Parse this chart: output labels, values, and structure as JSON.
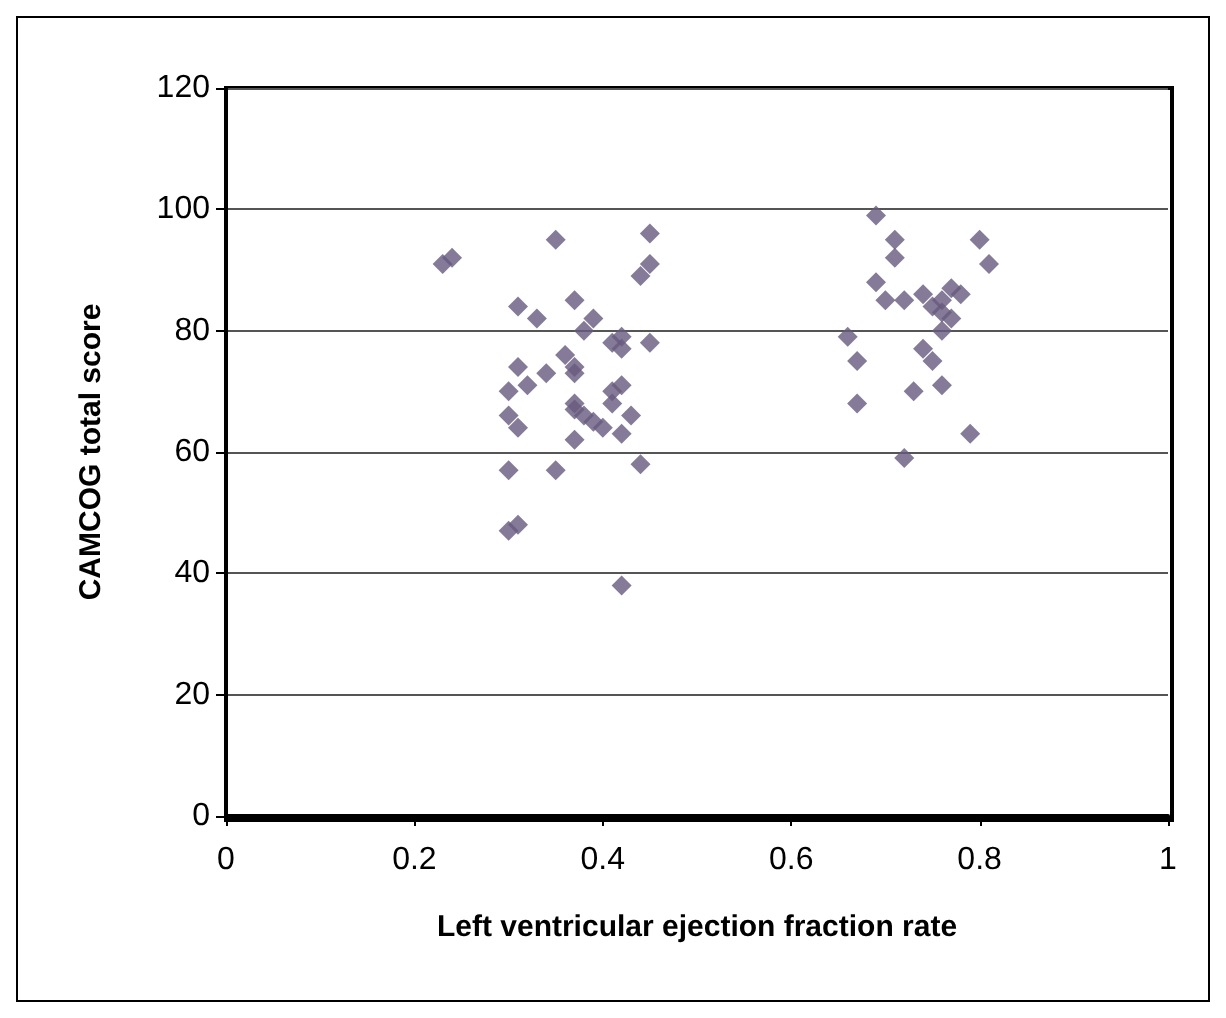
{
  "chart_data": {
    "type": "scatter",
    "xlabel": "Left ventricular ejection fraction rate",
    "ylabel": "CAMCOG total score",
    "xlim": [
      0,
      1
    ],
    "xticks": [
      0,
      0.2,
      0.4,
      0.6,
      0.8,
      1
    ],
    "ylim": [
      0,
      120
    ],
    "yticks": [
      0,
      20,
      40,
      60,
      80,
      100,
      120
    ],
    "grid": "y",
    "marker": "diamond",
    "series": [
      {
        "color": "#665a7e",
        "x": [
          0.23,
          0.24,
          0.35,
          0.45,
          0.44,
          0.45,
          0.31,
          0.33,
          0.37,
          0.38,
          0.39,
          0.36,
          0.34,
          0.37,
          0.37,
          0.31,
          0.32,
          0.3,
          0.42,
          0.41,
          0.42,
          0.45,
          0.3,
          0.31,
          0.37,
          0.37,
          0.38,
          0.39,
          0.4,
          0.42,
          0.41,
          0.41,
          0.43,
          0.42,
          0.37,
          0.3,
          0.35,
          0.44,
          0.3,
          0.31,
          0.42,
          0.69,
          0.71,
          0.71,
          0.8,
          0.81,
          0.69,
          0.7,
          0.72,
          0.74,
          0.76,
          0.77,
          0.78,
          0.75,
          0.76,
          0.77,
          0.76,
          0.66,
          0.74,
          0.75,
          0.67,
          0.76,
          0.73,
          0.67,
          0.72,
          0.79
        ],
        "values": [
          91,
          92,
          95,
          96,
          89,
          91,
          84,
          82,
          85,
          80,
          82,
          76,
          73,
          74,
          73,
          74,
          71,
          70,
          79,
          78,
          77,
          78,
          66,
          64,
          68,
          67,
          66,
          65,
          64,
          71,
          70,
          68,
          66,
          63,
          62,
          57,
          57,
          58,
          47,
          48,
          38,
          99,
          95,
          92,
          95,
          91,
          88,
          85,
          85,
          86,
          85,
          87,
          86,
          84,
          83,
          82,
          80,
          79,
          77,
          75,
          75,
          71,
          70,
          68,
          59,
          63
        ]
      }
    ]
  }
}
